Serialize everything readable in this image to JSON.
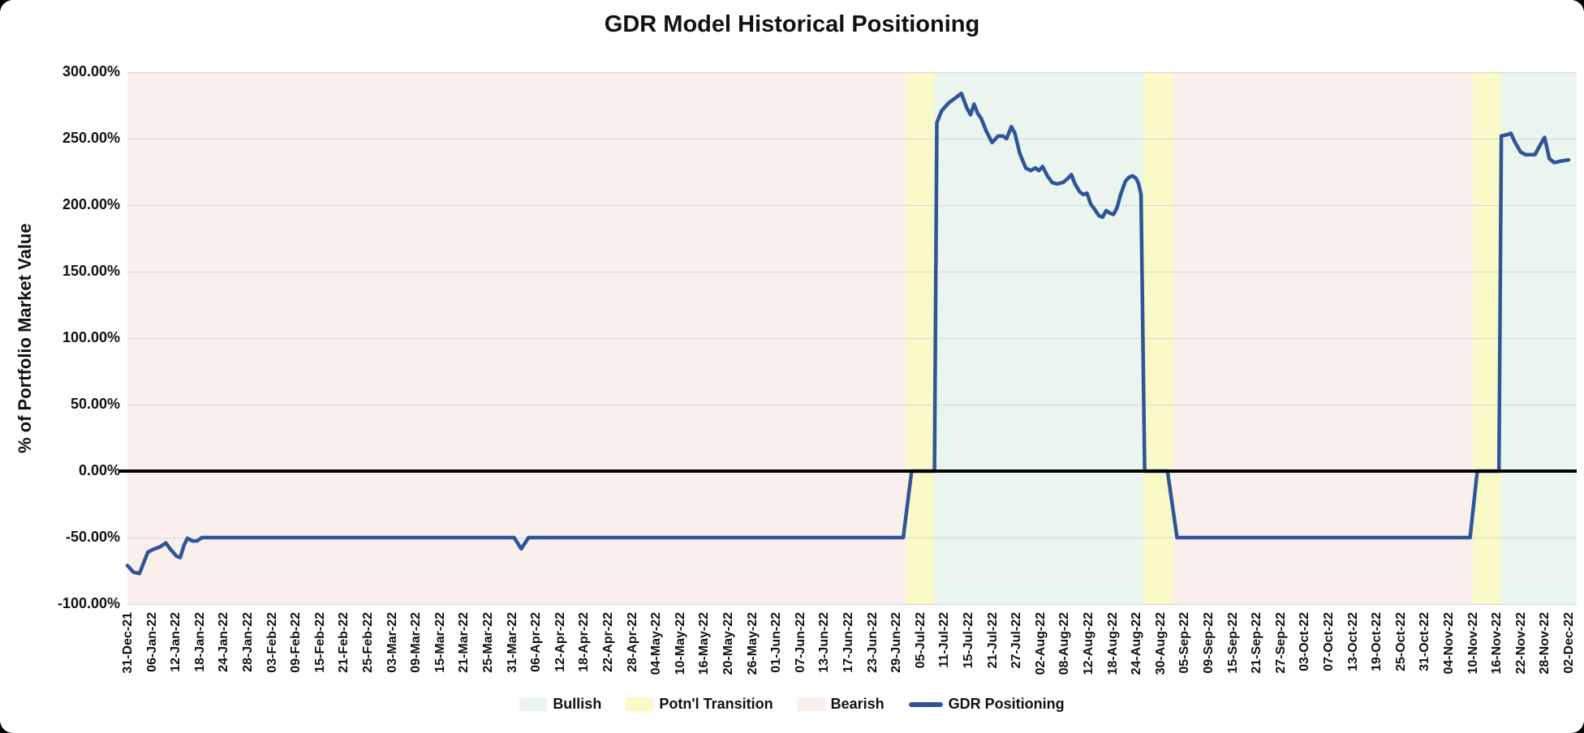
{
  "window": {
    "background": "#000000",
    "card_background": "#FFFFFF"
  },
  "chart_data": {
    "type": "line",
    "title": "GDR Model Historical Positioning",
    "ylabel": "% of Portfolio Market Value",
    "y_axis": {
      "min": -100,
      "max": 300,
      "step": 50,
      "format": "0.00%",
      "tick_labels": [
        "300.00%",
        "250.00%",
        "200.00%",
        "150.00%",
        "100.00%",
        "50.00%",
        "0.00%",
        "-50.00%",
        "-100.00%"
      ]
    },
    "x_unit": "x values are x-axis label indices (0 = 31-Dec-21 ... 60 = 02-Dec-22); fractional values fall between labeled dates",
    "x_tick_labels": [
      "31-Dec-21",
      "06-Jan-22",
      "12-Jan-22",
      "18-Jan-22",
      "24-Jan-22",
      "28-Jan-22",
      "03-Feb-22",
      "09-Feb-22",
      "15-Feb-22",
      "21-Feb-22",
      "25-Feb-22",
      "03-Mar-22",
      "09-Mar-22",
      "15-Mar-22",
      "21-Mar-22",
      "25-Mar-22",
      "31-Mar-22",
      "06-Apr-22",
      "12-Apr-22",
      "18-Apr-22",
      "22-Apr-22",
      "28-Apr-22",
      "04-May-22",
      "10-May-22",
      "16-May-22",
      "20-May-22",
      "26-May-22",
      "01-Jun-22",
      "07-Jun-22",
      "13-Jun-22",
      "17-Jun-22",
      "23-Jun-22",
      "29-Jun-22",
      "05-Jul-22",
      "11-Jul-22",
      "15-Jul-22",
      "21-Jul-22",
      "27-Jul-22",
      "02-Aug-22",
      "08-Aug-22",
      "12-Aug-22",
      "18-Aug-22",
      "24-Aug-22",
      "30-Aug-22",
      "05-Sep-22",
      "09-Sep-22",
      "15-Sep-22",
      "21-Sep-22",
      "27-Sep-22",
      "03-Oct-22",
      "07-Oct-22",
      "13-Oct-22",
      "19-Oct-22",
      "25-Oct-22",
      "31-Oct-22",
      "04-Nov-22",
      "10-Nov-22",
      "16-Nov-22",
      "22-Nov-22",
      "28-Nov-22",
      "02-Dec-22"
    ],
    "series": [
      {
        "name": "GDR Positioning",
        "color": "#2E5597",
        "points": [
          [
            0,
            -71
          ],
          [
            0.25,
            -76
          ],
          [
            0.5,
            -77
          ],
          [
            0.85,
            -61
          ],
          [
            1.05,
            -59
          ],
          [
            1.35,
            -57
          ],
          [
            1.6,
            -54
          ],
          [
            1.8,
            -59
          ],
          [
            2.05,
            -64
          ],
          [
            2.2,
            -65
          ],
          [
            2.35,
            -56
          ],
          [
            2.5,
            -50.5
          ],
          [
            2.7,
            -52.5
          ],
          [
            2.9,
            -52.5
          ],
          [
            3.1,
            -50
          ],
          [
            16.1,
            -50
          ],
          [
            16.4,
            -58.5
          ],
          [
            16.7,
            -50
          ],
          [
            32.3,
            -50
          ],
          [
            32.65,
            0
          ],
          [
            33.6,
            0
          ],
          [
            33.7,
            262
          ],
          [
            33.9,
            271
          ],
          [
            34.2,
            277
          ],
          [
            34.5,
            281
          ],
          [
            34.72,
            284
          ],
          [
            34.95,
            273
          ],
          [
            35.1,
            268
          ],
          [
            35.25,
            276
          ],
          [
            35.4,
            269
          ],
          [
            35.55,
            265
          ],
          [
            35.75,
            256
          ],
          [
            36.0,
            247
          ],
          [
            36.25,
            252
          ],
          [
            36.45,
            252
          ],
          [
            36.6,
            250
          ],
          [
            36.8,
            259
          ],
          [
            36.95,
            254
          ],
          [
            37.15,
            239
          ],
          [
            37.4,
            228
          ],
          [
            37.6,
            226
          ],
          [
            37.8,
            228
          ],
          [
            37.95,
            226
          ],
          [
            38.1,
            229
          ],
          [
            38.3,
            222
          ],
          [
            38.5,
            217
          ],
          [
            38.7,
            216
          ],
          [
            38.95,
            217
          ],
          [
            39.15,
            220
          ],
          [
            39.3,
            223
          ],
          [
            39.45,
            216
          ],
          [
            39.65,
            210
          ],
          [
            39.8,
            208
          ],
          [
            39.95,
            209
          ],
          [
            40.1,
            201
          ],
          [
            40.3,
            196
          ],
          [
            40.45,
            192
          ],
          [
            40.6,
            191
          ],
          [
            40.75,
            196
          ],
          [
            40.9,
            194
          ],
          [
            41.05,
            193
          ],
          [
            41.2,
            198
          ],
          [
            41.35,
            208
          ],
          [
            41.55,
            218
          ],
          [
            41.7,
            221
          ],
          [
            41.85,
            222
          ],
          [
            42.0,
            220
          ],
          [
            42.1,
            216
          ],
          [
            42.2,
            208
          ],
          [
            42.35,
            0
          ],
          [
            43.3,
            0
          ],
          [
            43.7,
            -50
          ],
          [
            55.9,
            -50
          ],
          [
            56.2,
            0
          ],
          [
            57.1,
            0
          ],
          [
            57.2,
            252
          ],
          [
            57.45,
            253
          ],
          [
            57.6,
            254
          ],
          [
            57.75,
            248
          ],
          [
            58.0,
            240
          ],
          [
            58.2,
            238
          ],
          [
            58.6,
            238
          ],
          [
            58.75,
            243
          ],
          [
            59.0,
            251
          ],
          [
            59.2,
            235
          ],
          [
            59.4,
            232
          ],
          [
            59.65,
            233
          ],
          [
            60.0,
            234
          ]
        ]
      }
    ],
    "regime_bands": [
      {
        "regime": "Bearish",
        "from": 0,
        "to": 32.42
      },
      {
        "regime": "Potn'l Transition",
        "from": 32.42,
        "to": 33.57
      },
      {
        "regime": "Bullish",
        "from": 33.57,
        "to": 42.3
      },
      {
        "regime": "Potn'l Transition",
        "from": 42.3,
        "to": 43.52
      },
      {
        "regime": "Bearish",
        "from": 43.52,
        "to": 56.0
      },
      {
        "regime": "Potn'l Transition",
        "from": 56.0,
        "to": 57.19
      },
      {
        "regime": "Bullish",
        "from": 57.19,
        "to": 60.4
      }
    ],
    "regime_colors": {
      "Bullish": "#EAF5EF",
      "Potn'l Transition": "#FAFAC8",
      "Bearish": "#FBEFED"
    },
    "gridline_color": "#D6D6D6",
    "zero_line_color": "#000000",
    "legend": {
      "position": "bottom",
      "items": [
        {
          "label": "Bullish",
          "marker": "box",
          "color": "#EAF5EF"
        },
        {
          "label": "Potn'l Transition",
          "marker": "box",
          "color": "#FAFAC8"
        },
        {
          "label": "Bearish",
          "marker": "box",
          "color": "#FBEFED"
        },
        {
          "label": "GDR Positioning",
          "marker": "line",
          "color": "#2E5597"
        }
      ]
    }
  }
}
